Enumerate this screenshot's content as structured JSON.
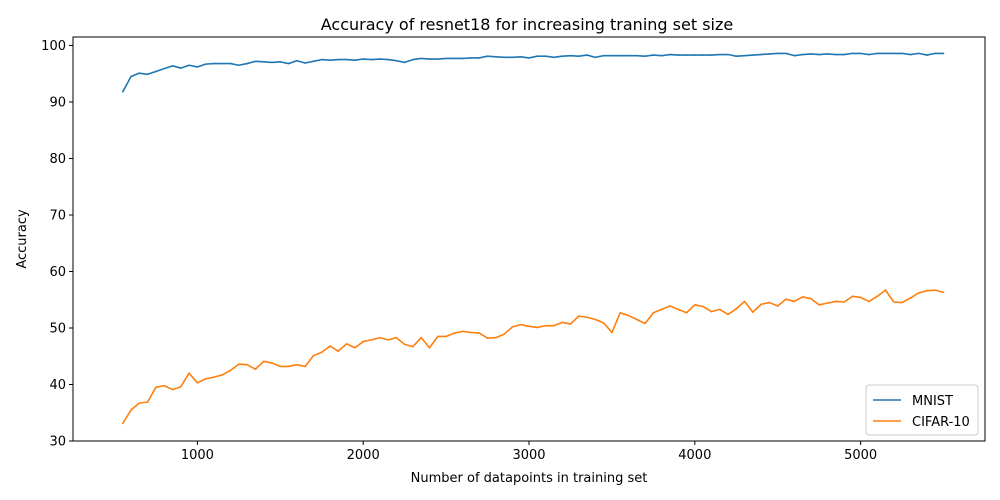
{
  "chart_data": {
    "type": "line",
    "title": "Accuracy of resnet18 for increasing traning set size",
    "xlabel": "Number of datapoints in training set",
    "ylabel": "Accuracy",
    "xlim": [
      250,
      5750
    ],
    "ylim": [
      30,
      101.5
    ],
    "xticks": [
      1000,
      2000,
      3000,
      4000,
      5000
    ],
    "yticks": [
      30,
      40,
      50,
      60,
      70,
      80,
      90,
      100
    ],
    "grid": false,
    "legend_position": "lower right",
    "x": [
      550,
      600,
      650,
      700,
      750,
      800,
      850,
      900,
      950,
      1000,
      1050,
      1100,
      1150,
      1200,
      1250,
      1300,
      1350,
      1400,
      1450,
      1500,
      1550,
      1600,
      1650,
      1700,
      1750,
      1800,
      1850,
      1900,
      1950,
      2000,
      2050,
      2100,
      2150,
      2200,
      2250,
      2300,
      2350,
      2400,
      2450,
      2500,
      2550,
      2600,
      2650,
      2700,
      2750,
      2800,
      2850,
      2900,
      2950,
      3000,
      3050,
      3100,
      3150,
      3200,
      3250,
      3300,
      3350,
      3400,
      3450,
      3500,
      3550,
      3600,
      3650,
      3700,
      3750,
      3800,
      3850,
      3900,
      3950,
      4000,
      4050,
      4100,
      4150,
      4200,
      4250,
      4300,
      4350,
      4400,
      4450,
      4500,
      4550,
      4600,
      4650,
      4700,
      4750,
      4800,
      4850,
      4900,
      4950,
      5000,
      5050,
      5100,
      5150,
      5200,
      5250,
      5300,
      5350,
      5400,
      5450,
      5500
    ],
    "series": [
      {
        "name": "MNIST",
        "color": "#1f77b4",
        "values": [
          91.8,
          94.5,
          95.1,
          94.9,
          95.4,
          95.9,
          96.4,
          96.0,
          96.5,
          96.2,
          96.7,
          96.8,
          96.8,
          96.8,
          96.5,
          96.8,
          97.2,
          97.1,
          97.0,
          97.1,
          96.8,
          97.3,
          96.9,
          97.2,
          97.5,
          97.4,
          97.5,
          97.5,
          97.4,
          97.6,
          97.5,
          97.6,
          97.5,
          97.3,
          97.0,
          97.5,
          97.7,
          97.6,
          97.6,
          97.7,
          97.7,
          97.7,
          97.8,
          97.8,
          98.1,
          98.0,
          97.9,
          97.9,
          98.0,
          97.8,
          98.1,
          98.1,
          97.9,
          98.1,
          98.2,
          98.1,
          98.3,
          97.9,
          98.2,
          98.2,
          98.2,
          98.2,
          98.2,
          98.1,
          98.3,
          98.2,
          98.4,
          98.3,
          98.3,
          98.3,
          98.3,
          98.3,
          98.4,
          98.4,
          98.1,
          98.2,
          98.3,
          98.4,
          98.5,
          98.6,
          98.6,
          98.2,
          98.4,
          98.5,
          98.4,
          98.5,
          98.4,
          98.4,
          98.6,
          98.6,
          98.4,
          98.6,
          98.6,
          98.6,
          98.6,
          98.4,
          98.6,
          98.3,
          98.6,
          98.6
        ]
      },
      {
        "name": "CIFAR-10",
        "color": "#ff7f0e",
        "values": [
          33.1,
          35.5,
          36.7,
          36.9,
          39.5,
          39.8,
          39.1,
          39.6,
          42.0,
          40.3,
          41.0,
          41.3,
          41.7,
          42.5,
          43.6,
          43.5,
          42.7,
          44.1,
          43.8,
          43.2,
          43.2,
          43.5,
          43.2,
          45.1,
          45.7,
          46.8,
          45.9,
          47.2,
          46.5,
          47.6,
          47.9,
          48.3,
          47.9,
          48.3,
          47.1,
          46.7,
          48.3,
          46.5,
          48.5,
          48.5,
          49.1,
          49.4,
          49.2,
          49.1,
          48.2,
          48.3,
          48.9,
          50.2,
          50.6,
          50.3,
          50.1,
          50.4,
          50.4,
          51.0,
          50.7,
          52.1,
          51.9,
          51.5,
          50.9,
          49.2,
          52.7,
          52.2,
          51.5,
          50.8,
          52.7,
          53.3,
          53.9,
          53.3,
          52.7,
          54.1,
          53.8,
          52.9,
          53.3,
          52.4,
          53.4,
          54.7,
          52.8,
          54.2,
          54.5,
          53.9,
          55.1,
          54.7,
          55.5,
          55.2,
          54.1,
          54.4,
          54.7,
          54.6,
          55.6,
          55.4,
          54.7,
          55.6,
          56.7,
          54.6,
          54.5,
          55.3,
          56.2,
          56.6,
          56.7,
          56.3
        ]
      }
    ]
  }
}
